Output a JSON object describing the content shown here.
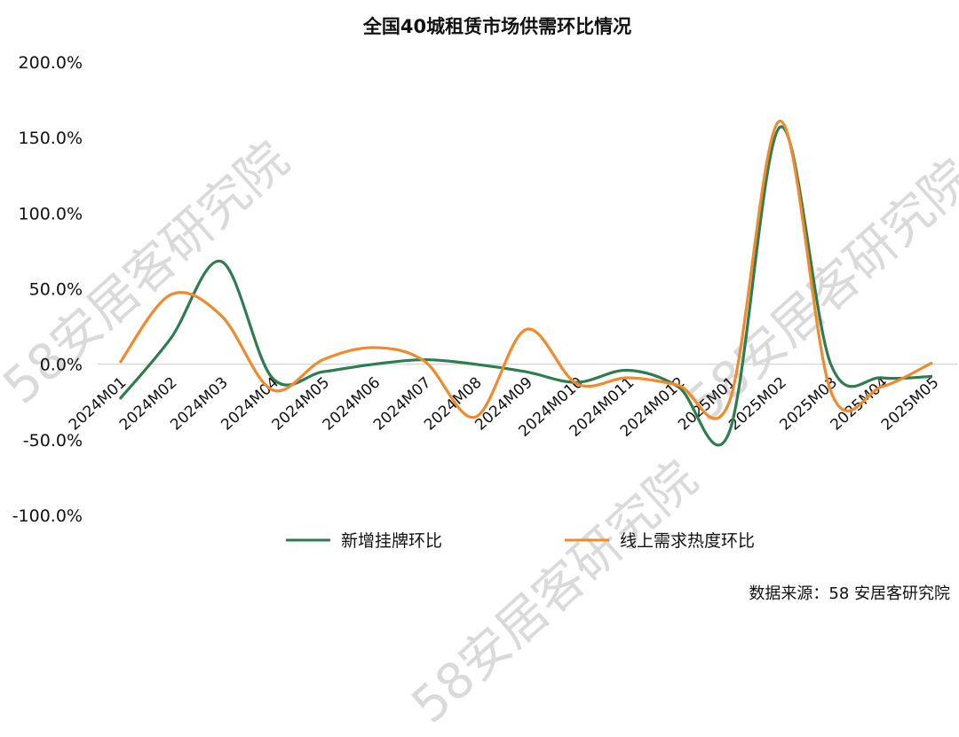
{
  "watermark": "58安居客研究院",
  "source_note": "数据来源：58 安居客研究院",
  "chart_data": {
    "type": "line",
    "title": "全国40城租赁市场供需环比情况",
    "categories": [
      "2024M01",
      "2024M02",
      "2024M03",
      "2024M04",
      "2024M05",
      "2024M06",
      "2024M07",
      "2024M08",
      "2024M09",
      "2024M010",
      "2024M011",
      "2024M012",
      "2025M01",
      "2025M02",
      "2025M03",
      "2025M04",
      "2025M05"
    ],
    "y_ticks": [
      "200.0%",
      "150.0%",
      "100.0%",
      "50.0%",
      "0.0%",
      "-50.0%",
      "-100.0%"
    ],
    "ylim": [
      -100,
      200
    ],
    "series": [
      {
        "name": "新增挂牌环比",
        "color": "#2e7d4f",
        "values": [
          -23,
          17,
          68,
          -9,
          -5,
          0,
          3,
          0,
          -5,
          -12,
          -4,
          -15,
          -45,
          157,
          0,
          -9,
          -8
        ]
      },
      {
        "name": "线上需求热度环比",
        "color": "#f08a2c",
        "values": [
          1,
          46,
          32,
          -17,
          3,
          11,
          2,
          -35,
          23,
          -13,
          -9,
          -14,
          -25,
          161,
          -18,
          -15,
          1
        ]
      }
    ],
    "legend_position": "bottom",
    "grid": false
  }
}
